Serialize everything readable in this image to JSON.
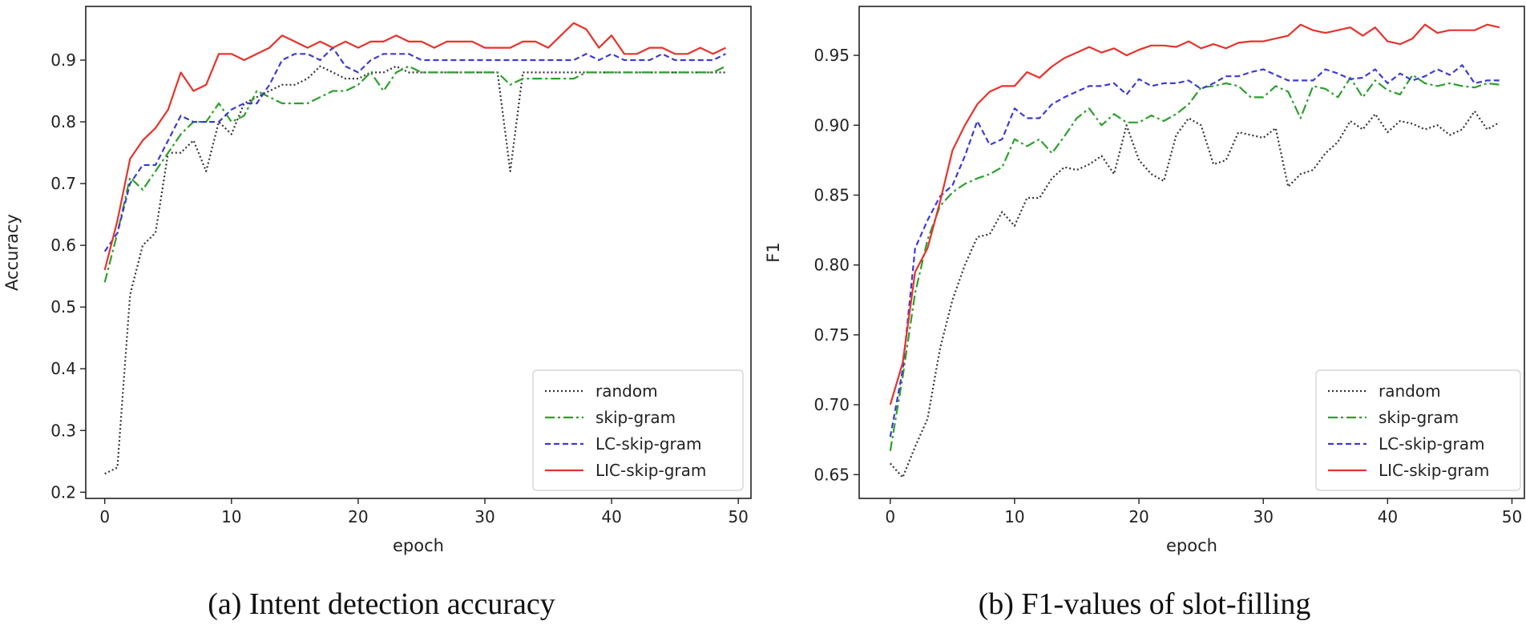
{
  "chart_data": [
    {
      "type": "line",
      "caption": "(a) Intent detection accuracy",
      "xlabel": "epoch",
      "ylabel": "Accuracy",
      "xlim": [
        -1.5,
        51
      ],
      "ylim": [
        0.19,
        0.987
      ],
      "xticks": [
        0,
        10,
        20,
        30,
        40,
        50
      ],
      "yticks": [
        0.2,
        0.3,
        0.4,
        0.5,
        0.6,
        0.7,
        0.8,
        0.9
      ],
      "ytick_labels": [
        "0.2",
        "0.3",
        "0.4",
        "0.5",
        "0.6",
        "0.7",
        "0.8",
        "0.9"
      ],
      "grid": false,
      "legend_position": "lower right",
      "x": [
        0,
        1,
        2,
        3,
        4,
        5,
        6,
        7,
        8,
        9,
        10,
        11,
        12,
        13,
        14,
        15,
        16,
        17,
        18,
        19,
        20,
        21,
        22,
        23,
        24,
        25,
        26,
        27,
        28,
        29,
        30,
        31,
        32,
        33,
        34,
        35,
        36,
        37,
        38,
        39,
        40,
        41,
        42,
        43,
        44,
        45,
        46,
        47,
        48,
        49
      ],
      "series": [
        {
          "name": "random",
          "color": "#333333",
          "dash": "2,3",
          "values": [
            0.23,
            0.24,
            0.52,
            0.6,
            0.62,
            0.75,
            0.75,
            0.77,
            0.72,
            0.8,
            0.78,
            0.83,
            0.84,
            0.85,
            0.86,
            0.86,
            0.87,
            0.89,
            0.88,
            0.87,
            0.87,
            0.88,
            0.88,
            0.89,
            0.88,
            0.88,
            0.88,
            0.88,
            0.88,
            0.88,
            0.88,
            0.88,
            0.72,
            0.88,
            0.88,
            0.88,
            0.88,
            0.88,
            0.88,
            0.88,
            0.88,
            0.88,
            0.88,
            0.88,
            0.88,
            0.88,
            0.88,
            0.88,
            0.88,
            0.88
          ]
        },
        {
          "name": "skip-gram",
          "color": "#2ca02c",
          "dash": "12,4,3,4",
          "values": [
            0.54,
            0.62,
            0.71,
            0.69,
            0.72,
            0.75,
            0.78,
            0.8,
            0.8,
            0.83,
            0.8,
            0.81,
            0.85,
            0.84,
            0.83,
            0.83,
            0.83,
            0.84,
            0.85,
            0.85,
            0.86,
            0.88,
            0.85,
            0.88,
            0.89,
            0.88,
            0.88,
            0.88,
            0.88,
            0.88,
            0.88,
            0.88,
            0.86,
            0.87,
            0.87,
            0.87,
            0.87,
            0.87,
            0.88,
            0.88,
            0.88,
            0.88,
            0.88,
            0.88,
            0.88,
            0.88,
            0.88,
            0.88,
            0.88,
            0.89
          ]
        },
        {
          "name": "LC-skip-gram",
          "color": "#3b3bd6",
          "dash": "7,4",
          "values": [
            0.59,
            0.62,
            0.7,
            0.73,
            0.73,
            0.77,
            0.81,
            0.8,
            0.8,
            0.8,
            0.82,
            0.83,
            0.83,
            0.86,
            0.9,
            0.91,
            0.91,
            0.9,
            0.92,
            0.89,
            0.88,
            0.9,
            0.91,
            0.91,
            0.91,
            0.9,
            0.9,
            0.9,
            0.9,
            0.9,
            0.9,
            0.9,
            0.9,
            0.9,
            0.9,
            0.9,
            0.9,
            0.9,
            0.91,
            0.9,
            0.91,
            0.9,
            0.9,
            0.9,
            0.91,
            0.9,
            0.9,
            0.9,
            0.9,
            0.91
          ]
        },
        {
          "name": "LIC-skip-gram",
          "color": "#e8322b",
          "dash": "",
          "values": [
            0.56,
            0.64,
            0.74,
            0.77,
            0.79,
            0.82,
            0.88,
            0.85,
            0.86,
            0.91,
            0.91,
            0.9,
            0.91,
            0.92,
            0.94,
            0.93,
            0.92,
            0.93,
            0.92,
            0.93,
            0.92,
            0.93,
            0.93,
            0.94,
            0.93,
            0.93,
            0.92,
            0.93,
            0.93,
            0.93,
            0.92,
            0.92,
            0.92,
            0.93,
            0.93,
            0.92,
            0.94,
            0.96,
            0.95,
            0.92,
            0.94,
            0.91,
            0.91,
            0.92,
            0.92,
            0.91,
            0.91,
            0.92,
            0.91,
            0.92
          ]
        }
      ]
    },
    {
      "type": "line",
      "caption": "(b) F1-values of slot-filling",
      "xlabel": "epoch",
      "ylabel": "F1",
      "xlim": [
        -2.5,
        51
      ],
      "ylim": [
        0.633,
        0.985
      ],
      "xticks": [
        0,
        10,
        20,
        30,
        40,
        50
      ],
      "yticks": [
        0.65,
        0.7,
        0.75,
        0.8,
        0.85,
        0.9,
        0.95
      ],
      "ytick_labels": [
        "0.65",
        "0.70",
        "0.75",
        "0.80",
        "0.85",
        "0.90",
        "0.95"
      ],
      "grid": false,
      "legend_position": "lower right",
      "x": [
        0,
        1,
        2,
        3,
        4,
        5,
        6,
        7,
        8,
        9,
        10,
        11,
        12,
        13,
        14,
        15,
        16,
        17,
        18,
        19,
        20,
        21,
        22,
        23,
        24,
        25,
        26,
        27,
        28,
        29,
        30,
        31,
        32,
        33,
        34,
        35,
        36,
        37,
        38,
        39,
        40,
        41,
        42,
        43,
        44,
        45,
        46,
        47,
        48,
        49
      ],
      "series": [
        {
          "name": "random",
          "color": "#333333",
          "dash": "2,3",
          "values": [
            0.658,
            0.648,
            0.67,
            0.69,
            0.74,
            0.775,
            0.8,
            0.82,
            0.822,
            0.838,
            0.828,
            0.848,
            0.848,
            0.862,
            0.87,
            0.868,
            0.872,
            0.878,
            0.865,
            0.9,
            0.875,
            0.865,
            0.86,
            0.893,
            0.905,
            0.9,
            0.872,
            0.875,
            0.895,
            0.893,
            0.891,
            0.898,
            0.856,
            0.865,
            0.868,
            0.88,
            0.888,
            0.903,
            0.897,
            0.908,
            0.895,
            0.903,
            0.901,
            0.897,
            0.9,
            0.893,
            0.897,
            0.91,
            0.897,
            0.902
          ]
        },
        {
          "name": "skip-gram",
          "color": "#2ca02c",
          "dash": "12,4,3,4",
          "values": [
            0.667,
            0.72,
            0.78,
            0.818,
            0.842,
            0.852,
            0.858,
            0.862,
            0.865,
            0.87,
            0.89,
            0.885,
            0.89,
            0.88,
            0.892,
            0.905,
            0.912,
            0.9,
            0.908,
            0.902,
            0.902,
            0.907,
            0.903,
            0.908,
            0.915,
            0.927,
            0.928,
            0.93,
            0.928,
            0.92,
            0.92,
            0.928,
            0.924,
            0.905,
            0.928,
            0.926,
            0.92,
            0.934,
            0.92,
            0.932,
            0.925,
            0.922,
            0.936,
            0.93,
            0.928,
            0.93,
            0.928,
            0.927,
            0.93,
            0.929
          ]
        },
        {
          "name": "LC-skip-gram",
          "color": "#3b3bd6",
          "dash": "7,4",
          "values": [
            0.677,
            0.725,
            0.812,
            0.832,
            0.849,
            0.857,
            0.878,
            0.903,
            0.886,
            0.89,
            0.912,
            0.905,
            0.905,
            0.915,
            0.92,
            0.924,
            0.928,
            0.928,
            0.93,
            0.922,
            0.933,
            0.928,
            0.93,
            0.93,
            0.932,
            0.926,
            0.93,
            0.935,
            0.935,
            0.938,
            0.94,
            0.936,
            0.932,
            0.932,
            0.932,
            0.94,
            0.937,
            0.933,
            0.934,
            0.94,
            0.93,
            0.937,
            0.932,
            0.935,
            0.94,
            0.936,
            0.943,
            0.93,
            0.932,
            0.932
          ]
        },
        {
          "name": "LIC-skip-gram",
          "color": "#e8322b",
          "dash": "",
          "values": [
            0.7,
            0.73,
            0.795,
            0.812,
            0.845,
            0.882,
            0.9,
            0.915,
            0.924,
            0.928,
            0.928,
            0.938,
            0.934,
            0.942,
            0.948,
            0.952,
            0.956,
            0.952,
            0.955,
            0.95,
            0.954,
            0.957,
            0.957,
            0.956,
            0.96,
            0.955,
            0.958,
            0.955,
            0.959,
            0.96,
            0.96,
            0.962,
            0.964,
            0.972,
            0.968,
            0.966,
            0.968,
            0.97,
            0.964,
            0.97,
            0.96,
            0.958,
            0.962,
            0.972,
            0.966,
            0.968,
            0.968,
            0.968,
            0.972,
            0.97
          ]
        }
      ]
    }
  ]
}
